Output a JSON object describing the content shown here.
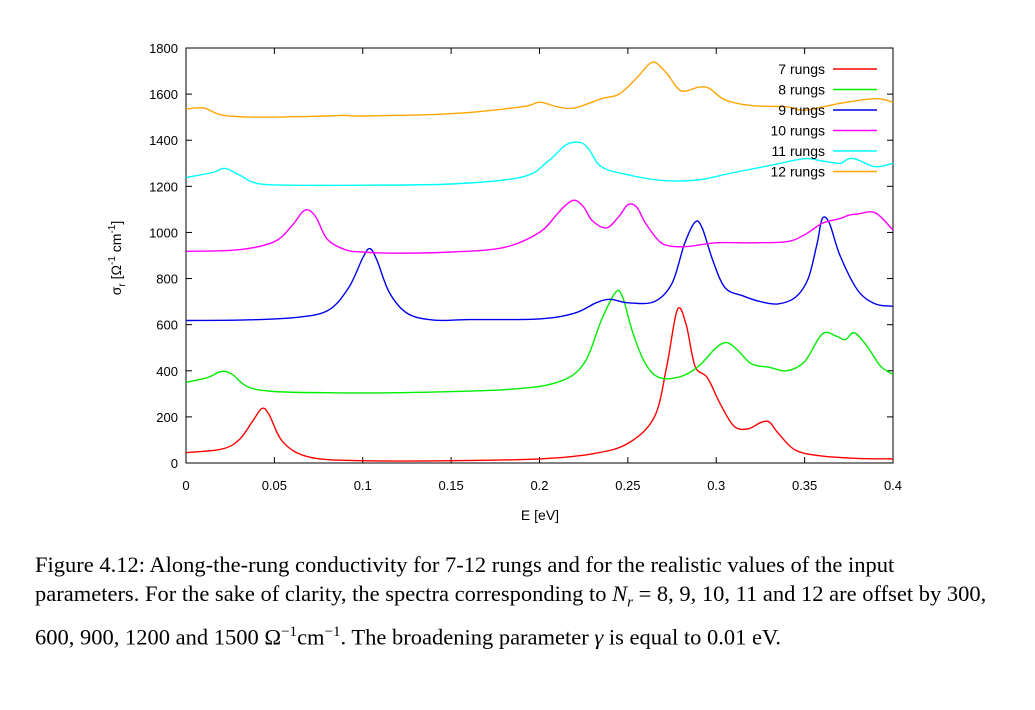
{
  "chart_data": {
    "type": "line",
    "xlabel": "E [eV]",
    "ylabel": "σ",
    "ylabel_sub": "r",
    "ylabel_units_open": " [Ω",
    "ylabel_units_exp1": "-1",
    "ylabel_units_mid": " cm",
    "ylabel_units_exp2": "-1",
    "ylabel_units_close": "]",
    "xlim": [
      0,
      0.4
    ],
    "ylim": [
      0,
      1800
    ],
    "xticks": [
      0,
      0.05,
      0.1,
      0.15,
      0.2,
      0.25,
      0.3,
      0.35,
      0.4
    ],
    "xtick_labels": [
      "0",
      "0.05",
      "0.1",
      "0.15",
      "0.2",
      "0.25",
      "0.3",
      "0.35",
      "0.4"
    ],
    "yticks": [
      0,
      200,
      400,
      600,
      800,
      1000,
      1200,
      1400,
      1600,
      1800
    ],
    "ytick_labels": [
      "0",
      "200",
      "400",
      "600",
      "800",
      "1000",
      "1200",
      "1400",
      "1600",
      "1800"
    ],
    "grid": false,
    "legend_position": "top-right",
    "series": [
      {
        "name": "7 rungs",
        "color": "#ff0000",
        "x": [
          0,
          0.02,
          0.03,
          0.038,
          0.043,
          0.047,
          0.055,
          0.07,
          0.1,
          0.15,
          0.2,
          0.23,
          0.25,
          0.265,
          0.272,
          0.278,
          0.283,
          0.288,
          0.295,
          0.302,
          0.31,
          0.318,
          0.325,
          0.33,
          0.335,
          0.345,
          0.36,
          0.38,
          0.4
        ],
        "y": [
          45,
          60,
          100,
          185,
          237,
          210,
          90,
          25,
          10,
          10,
          18,
          40,
          85,
          200,
          420,
          665,
          600,
          420,
          370,
          260,
          160,
          148,
          175,
          178,
          130,
          55,
          30,
          20,
          18
        ]
      },
      {
        "name": "8 rungs",
        "color": "#00ee00",
        "x": [
          0,
          0.012,
          0.02,
          0.026,
          0.035,
          0.05,
          0.08,
          0.12,
          0.18,
          0.21,
          0.225,
          0.235,
          0.243,
          0.247,
          0.253,
          0.26,
          0.268,
          0.28,
          0.29,
          0.3,
          0.306,
          0.312,
          0.32,
          0.33,
          0.34,
          0.35,
          0.36,
          0.368,
          0.373,
          0.378,
          0.385,
          0.393,
          0.4
        ],
        "y": [
          350,
          370,
          397,
          385,
          330,
          310,
          305,
          305,
          318,
          350,
          430,
          620,
          740,
          720,
          560,
          430,
          370,
          375,
          420,
          500,
          522,
          490,
          430,
          415,
          400,
          440,
          560,
          550,
          535,
          565,
          510,
          420,
          385
        ]
      },
      {
        "name": "9 rungs",
        "color": "#0000ee",
        "x": [
          0,
          0.03,
          0.06,
          0.08,
          0.092,
          0.1,
          0.104,
          0.108,
          0.115,
          0.125,
          0.14,
          0.16,
          0.2,
          0.22,
          0.232,
          0.24,
          0.25,
          0.265,
          0.275,
          0.282,
          0.288,
          0.292,
          0.298,
          0.305,
          0.315,
          0.325,
          0.335,
          0.345,
          0.352,
          0.357,
          0.36,
          0.364,
          0.37,
          0.38,
          0.39,
          0.4
        ],
        "y": [
          618,
          620,
          630,
          660,
          760,
          890,
          930,
          880,
          740,
          650,
          620,
          622,
          625,
          650,
          695,
          710,
          695,
          700,
          780,
          950,
          1045,
          1020,
          880,
          760,
          725,
          700,
          690,
          720,
          800,
          950,
          1060,
          1040,
          900,
          750,
          690,
          680
        ]
      },
      {
        "name": "10 rungs",
        "color": "#ff00ff",
        "x": [
          0,
          0.03,
          0.05,
          0.06,
          0.066,
          0.07,
          0.074,
          0.08,
          0.09,
          0.1,
          0.12,
          0.15,
          0.18,
          0.2,
          0.21,
          0.215,
          0.22,
          0.225,
          0.23,
          0.238,
          0.245,
          0.25,
          0.255,
          0.26,
          0.268,
          0.275,
          0.285,
          0.3,
          0.32,
          0.34,
          0.35,
          0.36,
          0.37,
          0.375,
          0.38,
          0.39,
          0.4
        ],
        "y": [
          918,
          925,
          960,
          1030,
          1090,
          1095,
          1060,
          970,
          925,
          915,
          910,
          915,
          935,
          1000,
          1080,
          1120,
          1140,
          1110,
          1050,
          1020,
          1070,
          1120,
          1110,
          1040,
          960,
          940,
          940,
          955,
          955,
          960,
          990,
          1040,
          1060,
          1075,
          1080,
          1085,
          1010
        ]
      },
      {
        "name": "11 rungs",
        "color": "#00ffff",
        "x": [
          0,
          0.015,
          0.022,
          0.03,
          0.04,
          0.06,
          0.1,
          0.15,
          0.19,
          0.205,
          0.215,
          0.223,
          0.228,
          0.235,
          0.25,
          0.27,
          0.29,
          0.31,
          0.33,
          0.35,
          0.36,
          0.37,
          0.375,
          0.38,
          0.39,
          0.4
        ],
        "y": [
          1238,
          1260,
          1278,
          1250,
          1213,
          1205,
          1205,
          1210,
          1240,
          1310,
          1380,
          1390,
          1360,
          1285,
          1250,
          1225,
          1228,
          1260,
          1290,
          1320,
          1310,
          1300,
          1320,
          1315,
          1285,
          1300
        ]
      },
      {
        "name": "12 rungs",
        "color": "#ffa500",
        "x": [
          0,
          0.01,
          0.02,
          0.04,
          0.08,
          0.09,
          0.1,
          0.15,
          0.19,
          0.2,
          0.21,
          0.22,
          0.235,
          0.245,
          0.255,
          0.262,
          0.266,
          0.272,
          0.28,
          0.29,
          0.296,
          0.305,
          0.32,
          0.34,
          0.35,
          0.37,
          0.39,
          0.4
        ],
        "y": [
          1535,
          1540,
          1510,
          1500,
          1505,
          1508,
          1505,
          1515,
          1545,
          1565,
          1545,
          1540,
          1580,
          1600,
          1670,
          1730,
          1735,
          1690,
          1615,
          1630,
          1625,
          1575,
          1550,
          1545,
          1530,
          1560,
          1580,
          1565
        ]
      }
    ]
  },
  "caption": {
    "label": "Figure 4.12:",
    "text_1": " Along-the-rung conductivity for 7-12 rungs and for the realistic values of the input parameters. For the sake of clarity, the spectra corresponding to ",
    "math_var": "N",
    "math_sub": "r",
    "text_2": " = 8, 9, 10, 11 and 12 are offset by 300, 600, 900, 1200 and 1500 Ω",
    "exp_1": "−1",
    "text_3": "cm",
    "exp_2": "−1",
    "text_4": ". The broadening parameter ",
    "gamma": "γ",
    "text_5": " is equal to 0.01 eV."
  }
}
